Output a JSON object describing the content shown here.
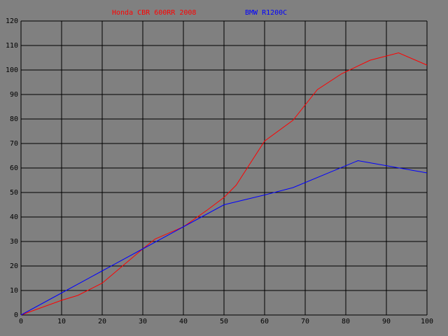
{
  "chart_data": {
    "type": "line",
    "xlim": [
      0,
      100
    ],
    "xticks": [
      0,
      10,
      20,
      30,
      40,
      50,
      60,
      70,
      80,
      90,
      100
    ],
    "ylim": [
      0,
      120
    ],
    "yticks": [
      0,
      10,
      20,
      30,
      40,
      50,
      60,
      70,
      80,
      90,
      100,
      110,
      120
    ],
    "grid": true,
    "series": [
      {
        "name": "Honda CBR 600RR 2008",
        "color": "#ff0000",
        "x": [
          0,
          5,
          10,
          14,
          20,
          25,
          30,
          33,
          40,
          46,
          50,
          53,
          60,
          67,
          73,
          79,
          86,
          93,
          100
        ],
        "values": [
          0,
          3,
          6,
          8,
          13,
          20,
          27,
          31,
          36,
          43,
          48,
          53,
          71,
          79.5,
          92,
          98.5,
          104,
          107,
          102
        ]
      },
      {
        "name": "BMW R1200C",
        "color": "#0000ff",
        "x": [
          0,
          10,
          20,
          30,
          40,
          50,
          60,
          67,
          83,
          100
        ],
        "values": [
          0,
          9,
          18,
          27,
          36,
          45,
          49,
          52,
          63,
          58
        ]
      }
    ]
  }
}
